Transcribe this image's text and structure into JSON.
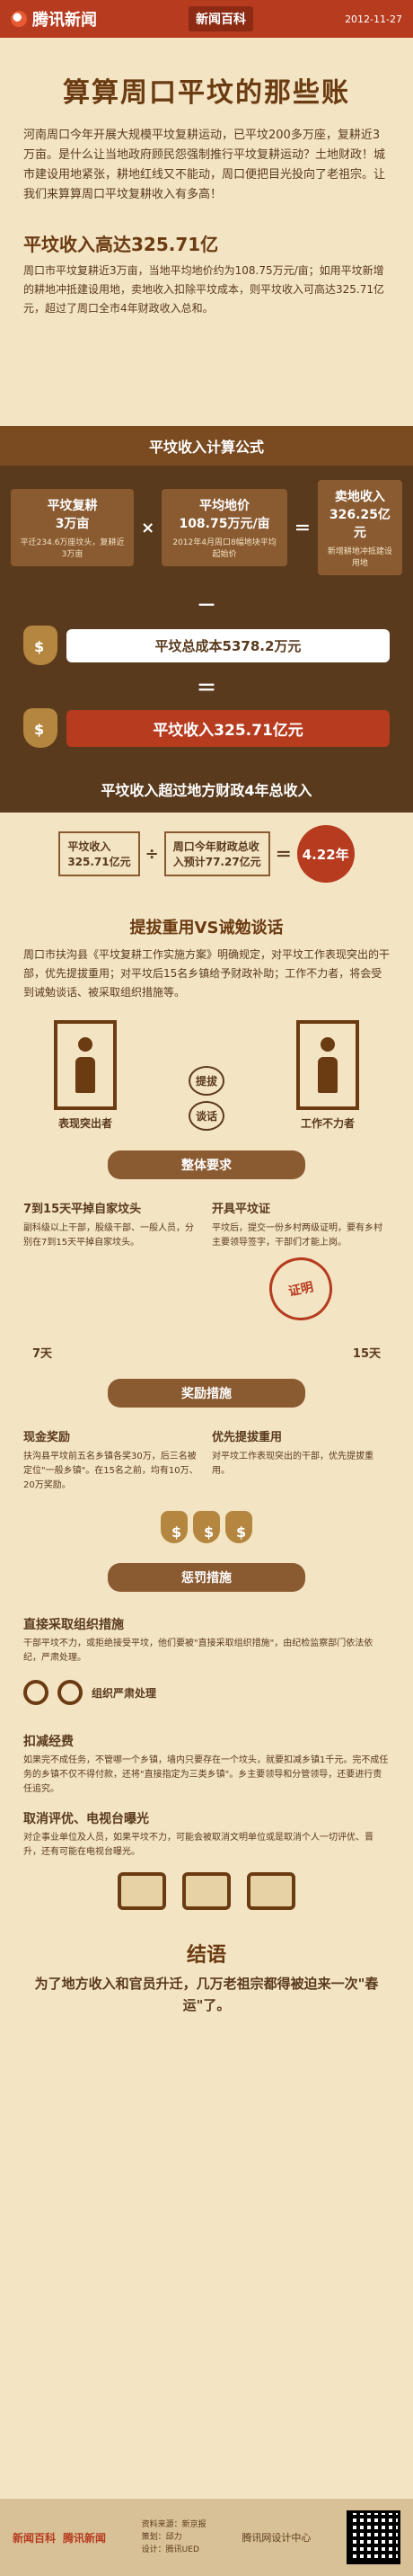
{
  "header": {
    "brand": "腾讯新闻",
    "section": "新闻百科",
    "date": "2012-11-27"
  },
  "title": "算算周口平坟的那些账",
  "intro": "河南周口今年开展大规模平坟复耕运动，已平坟200多万座，复耕近3万亩。是什么让当地政府顾民怨强制推行平坟复耕运动？土地财政！城市建设用地紧张，耕地红线又不能动，周口便把目光投向了老祖宗。让我们来算算周口平坟复耕收入有多高！",
  "sec1": {
    "heading": "平坟收入高达325.71亿",
    "text": "周口市平坟复耕近3万亩，当地平均地价约为108.75万元/亩；如用平坟新增的耕地冲抵建设用地，卖地收入扣除平坟成本，则平坟收入可高达325.71亿元，超过了周口全市4年财政收入总和。"
  },
  "formula": {
    "ribbon": "平坟收入计算公式",
    "a": {
      "v": "平坟复耕\n3万亩",
      "s": "平迁234.6万座坟头，复耕近3万亩"
    },
    "b": {
      "v": "平均地价\n108.75万元/亩",
      "s": "2012年4月周口8幅地块平均起始价"
    },
    "c": {
      "v": "卖地收入\n326.25亿元",
      "s": "新增耕地冲抵建设用地"
    },
    "cost": "平坟总成本5378.2万元",
    "income": "平坟收入325.71亿元",
    "minus": "－",
    "equals": "＝",
    "times": "×"
  },
  "compare": {
    "title": "平坟收入超过地方财政4年总收入",
    "a": "平坟收入\n325.71亿元",
    "op": "÷",
    "b": "周口今年财政总收\n入预计77.27亿元",
    "eq": "＝",
    "result": "4.22年"
  },
  "promo": {
    "heading": "提拔重用VS诫勉谈话",
    "text": "周口市扶沟县《平坟复耕工作实施方案》明确规定，对平坟工作表现突出的干部，优先提拔重用；对平坟后15名乡镇给予财政补助；工作不力者，将会受到诫勉谈话、被采取组织措施等。",
    "left": "表现突出者",
    "right": "工作不力者",
    "up": "提拔",
    "down": "谈话"
  },
  "req": {
    "strip": "整体要求",
    "left_h": "7到15天平掉自家坟头",
    "left_p": "副科级以上干部，股级干部、一般人员，分别在7到15天平掉自家坟头。",
    "right_h": "开具平坟证",
    "right_p": "平坟后，提交一份乡村两级证明，要有乡村主要领导签字，干部们才能上岗。",
    "d7": "7天",
    "d15": "15天",
    "stamp": "证明"
  },
  "reward": {
    "strip": "奖励措施",
    "left_h": "现金奖励",
    "left_p": "扶沟县平坟前五名乡镇各奖30万，后三名被定位\"一般乡镇\"。在15名之前，均有10万、20万奖励。",
    "right_h": "优先提拔重用",
    "right_p": "对平坟工作表现突出的干部，优先提拔重用。"
  },
  "punish": {
    "strip": "惩罚措施",
    "h1": "直接采取组织措施",
    "p1": "干部平坟不力，或拒绝接受平坟，他们要被\"直接采取组织措施\"，由纪检监察部门依法依纪，严肃处理。",
    "cuff_label": "组织严肃处理",
    "h2": "扣减经费",
    "p2": "如果完不成任务，不管哪一个乡镇，墙内只要存在一个坟头，就要扣减乡镇1千元。完不成任务的乡镇不仅不得付款，还将\"直接指定为三类乡镇\"。乡主要领导和分管领导，还要进行责任追究。",
    "h3": "取消评优、电视台曝光",
    "p3": "对企事业单位及人员，如果平坟不力，可能会被取消文明单位或是取消个人一切评优、晋升，还有可能在电视台曝光。"
  },
  "conclusion": {
    "heading": "结语",
    "text": "为了地方收入和官员升迁，几万老祖宗都得被迫来一次\"春运\"了。"
  },
  "footer": {
    "credits": "资料来源：新京报\n策划：邱力\n设计：腾讯UED",
    "logo1": "新闻百科",
    "logo2": "腾讯新闻",
    "ue": "腾讯网设计中心"
  }
}
